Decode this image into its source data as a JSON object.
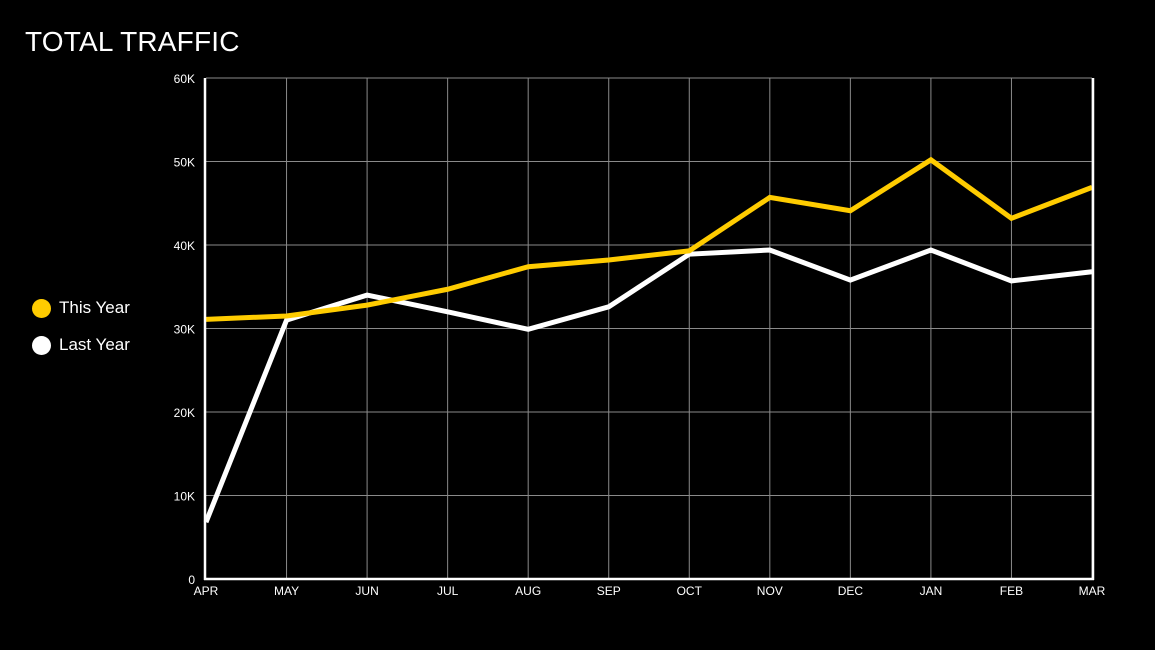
{
  "title": "TOTAL TRAFFIC",
  "legend": [
    {
      "label": "This Year",
      "color": "#FFCC00"
    },
    {
      "label": "Last Year",
      "color": "#FFFFFF"
    }
  ],
  "colors": {
    "background": "#000000",
    "grid": "#8a8a8a",
    "axis": "#FFFFFF",
    "this_year": "#FFCC00",
    "last_year": "#FFFFFF"
  },
  "chart_data": {
    "type": "line",
    "title": "TOTAL TRAFFIC",
    "xlabel": "",
    "ylabel": "",
    "categories": [
      "APR",
      "MAY",
      "JUN",
      "JUL",
      "AUG",
      "SEP",
      "OCT",
      "NOV",
      "DEC",
      "JAN",
      "FEB",
      "MAR"
    ],
    "series": [
      {
        "name": "This Year",
        "color": "#FFCC00",
        "values": [
          31100,
          31500,
          32800,
          34700,
          37400,
          38200,
          39300,
          45700,
          44100,
          50200,
          43200,
          46900
        ]
      },
      {
        "name": "Last Year",
        "color": "#FFFFFF",
        "values": [
          6800,
          31000,
          34000,
          32000,
          29900,
          32600,
          38900,
          39400,
          35800,
          39400,
          35700,
          36800
        ]
      }
    ],
    "ylim": [
      0,
      60000
    ],
    "yticks": [
      0,
      10000,
      20000,
      30000,
      40000,
      50000,
      60000
    ],
    "ytick_labels": [
      "0",
      "10K",
      "20K",
      "30K",
      "40K",
      "50K",
      "60K"
    ],
    "grid": true,
    "legend_position": "left"
  }
}
